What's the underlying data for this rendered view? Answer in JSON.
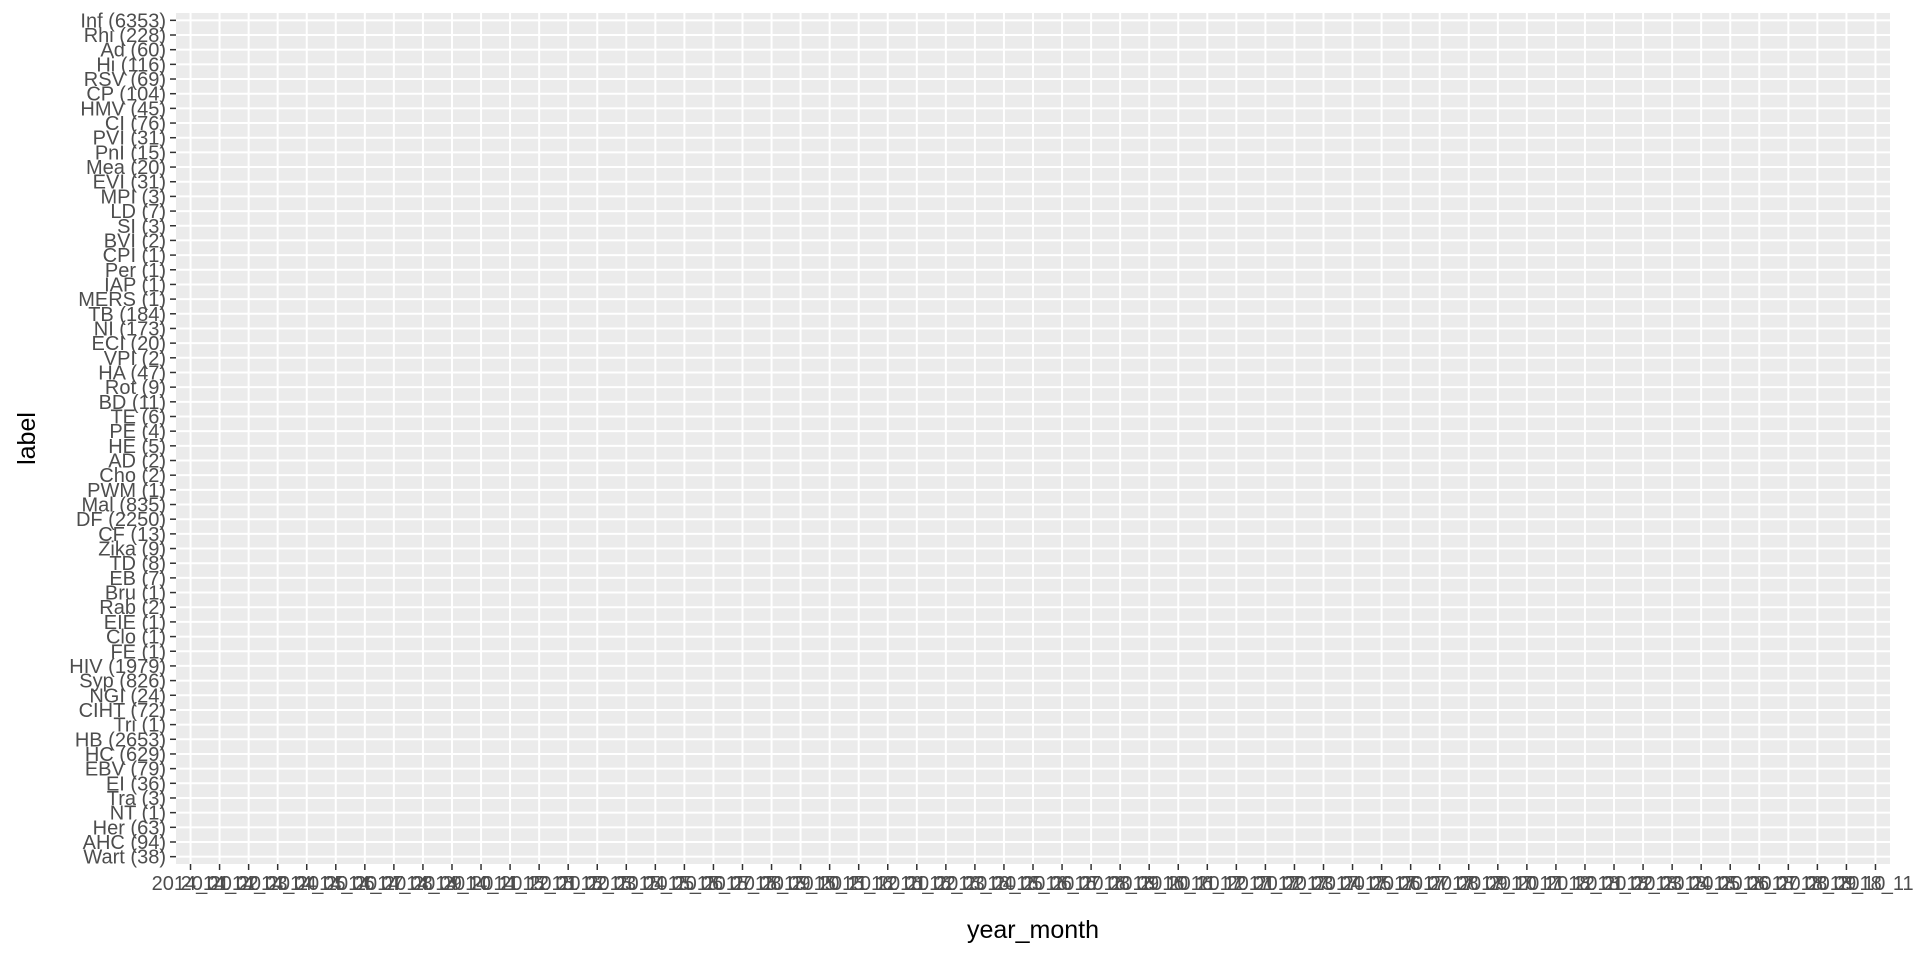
{
  "chart_data": {
    "type": "heatmap",
    "title": "",
    "xlabel": "year_month",
    "ylabel": "label",
    "grid": true,
    "legend": "none",
    "colors": {
      "panel_background": "#ebebeb",
      "grid_major": "#ffffff",
      "tick_label": "#4d4d4d",
      "axis_title": "#000000"
    },
    "y_categories": [
      "Inf (6353)",
      "Rhi (228)",
      "Ad (60)",
      "Hi (116)",
      "RSV (69)",
      "CP (104)",
      "HMV (45)",
      "CI (76)",
      "PVI (31)",
      "PnI (15)",
      "Mea (20)",
      "EVI (31)",
      "MPI (3)",
      "LD (7)",
      "SI (3)",
      "BVI (2)",
      "CPI (1)",
      "Per (1)",
      "IAP (1)",
      "MERS (1)",
      "TB (184)",
      "NI (173)",
      "ECI (20)",
      "VPI (2)",
      "HA (47)",
      "Rot (9)",
      "BD (11)",
      "TE (6)",
      "PE (4)",
      "HE (5)",
      "AD (2)",
      "Cho (2)",
      "PWM (1)",
      "Mal (835)",
      "DF (2250)",
      "CF (13)",
      "Zika (9)",
      "TD (8)",
      "EB (7)",
      "Bru (1)",
      "Rab (2)",
      "EIE (1)",
      "Clo (1)",
      "FE (1)",
      "HIV (1979)",
      "Syp (826)",
      "NGI (24)",
      "CIHT (72)",
      "Tri (1)",
      "HB (2653)",
      "HC (629)",
      "EBV (79)",
      "EI (36)",
      "Tra (3)",
      "NT (1)",
      "Her (63)",
      "AHC (94)",
      "Wart (38)"
    ],
    "x_categories": [
      "2014_01",
      "2014_02",
      "2014_03",
      "2014_04",
      "2014_05",
      "2014_06",
      "2014_07",
      "2014_08",
      "2014_09",
      "2014_10",
      "2014_11",
      "2014_12",
      "2015_01",
      "2015_02",
      "2015_03",
      "2015_04",
      "2015_05",
      "2015_06",
      "2015_07",
      "2015_08",
      "2015_09",
      "2015_10",
      "2015_11",
      "2015_12",
      "2016_01",
      "2016_02",
      "2016_03",
      "2016_04",
      "2016_05",
      "2016_06",
      "2016_07",
      "2016_08",
      "2016_09",
      "2016_10",
      "2016_11",
      "2016_12",
      "2017_01",
      "2017_02",
      "2017_03",
      "2017_04",
      "2017_05",
      "2017_06",
      "2017_07",
      "2017_08",
      "2017_09",
      "2017_10",
      "2017_11",
      "2017_12",
      "2018_01",
      "2018_02",
      "2018_03",
      "2018_04",
      "2018_05",
      "2018_06",
      "2018_07",
      "2018_08",
      "2018_09",
      "2018_10",
      "2018_11"
    ]
  }
}
